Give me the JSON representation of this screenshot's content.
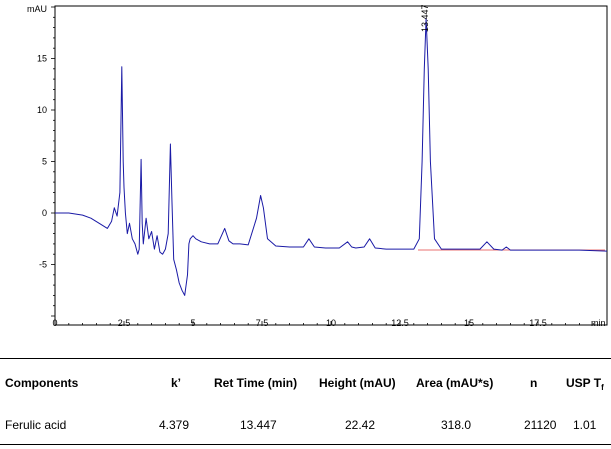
{
  "chart_data": {
    "type": "line",
    "xlabel": "min",
    "ylabel": "mAU",
    "xlim": [
      0,
      20
    ],
    "ylim": [
      -10,
      20
    ],
    "xticks": [
      0,
      2.5,
      5,
      7.5,
      10,
      12.5,
      15,
      17.5
    ],
    "xtick_labels": [
      "0",
      "2.5",
      "5",
      "7.5",
      "10",
      "12.5",
      "15",
      "17.5"
    ],
    "yticks": [
      -5,
      0,
      5,
      10,
      15
    ],
    "ytick_labels": [
      "-5",
      "0",
      "5",
      "10",
      "15"
    ],
    "peak_annotation": {
      "label": "13.447",
      "x": 13.447
    },
    "series": [
      {
        "color": "#1a1aa6",
        "x": [
          0,
          0.5,
          1.0,
          1.3,
          1.6,
          1.9,
          2.05,
          2.15,
          2.25,
          2.35,
          2.42,
          2.47,
          2.5,
          2.55,
          2.62,
          2.7,
          2.8,
          2.9,
          3.0,
          3.05,
          3.12,
          3.16,
          3.2,
          3.3,
          3.4,
          3.5,
          3.6,
          3.7,
          3.8,
          3.9,
          4.0,
          4.1,
          4.18,
          4.24,
          4.3,
          4.4,
          4.5,
          4.6,
          4.7,
          4.8,
          4.85,
          4.9,
          5.0,
          5.1,
          5.3,
          5.6,
          5.9,
          6.15,
          6.3,
          6.45,
          6.7,
          7.0,
          7.3,
          7.45,
          7.55,
          7.7,
          8.0,
          8.5,
          9.0,
          9.2,
          9.4,
          9.8,
          10.3,
          10.6,
          10.75,
          10.9,
          11.2,
          11.4,
          11.6,
          12.0,
          12.5,
          13.0,
          13.2,
          13.3,
          13.38,
          13.447,
          13.52,
          13.6,
          13.75,
          14.0,
          14.5,
          15.0,
          15.4,
          15.65,
          15.9,
          16.2,
          16.35,
          16.5,
          17.0,
          17.5,
          18.0,
          19.0,
          20.0
        ],
        "y": [
          0.0,
          0.0,
          -0.2,
          -0.5,
          -1.0,
          -1.5,
          -0.8,
          0.5,
          -0.3,
          2.0,
          14.2,
          5.0,
          2.5,
          0.0,
          -2.0,
          -1.0,
          -2.5,
          -3.0,
          -4.0,
          -3.5,
          5.2,
          -1.0,
          -3.0,
          -0.5,
          -2.5,
          -1.8,
          -3.5,
          -2.2,
          -3.8,
          -4.0,
          -3.5,
          -2.0,
          6.7,
          1.0,
          -4.5,
          -5.5,
          -6.8,
          -7.5,
          -8.0,
          -6.0,
          -3.0,
          -2.5,
          -2.2,
          -2.5,
          -2.8,
          -3.0,
          -3.0,
          -1.5,
          -2.7,
          -3.0,
          -3.0,
          -3.1,
          -0.5,
          1.7,
          0.5,
          -2.5,
          -3.2,
          -3.3,
          -3.3,
          -2.5,
          -3.3,
          -3.4,
          -3.4,
          -2.8,
          -3.3,
          -3.4,
          -3.3,
          -2.5,
          -3.4,
          -3.5,
          -3.5,
          -3.5,
          -2.5,
          5.0,
          14.0,
          18.9,
          14.0,
          5.0,
          -2.5,
          -3.5,
          -3.5,
          -3.5,
          -3.5,
          -2.8,
          -3.5,
          -3.6,
          -3.3,
          -3.6,
          -3.6,
          -3.6,
          -3.6,
          -3.6,
          -3.7
        ]
      }
    ]
  },
  "results_table": {
    "headers": {
      "components": "Components",
      "k": "k’",
      "ret_time": "Ret Time (min)",
      "height": "Height (mAU)",
      "area": "Area (mAU*s)",
      "n": "n",
      "usp_t": "USP T",
      "usp_t_sub": "f"
    },
    "rows": [
      {
        "component": "Ferulic acid",
        "k": "4.379",
        "ret_time": "13.447",
        "height": "22.42",
        "area": "318.0",
        "n": "21120",
        "usp_t": "1.01"
      }
    ]
  }
}
